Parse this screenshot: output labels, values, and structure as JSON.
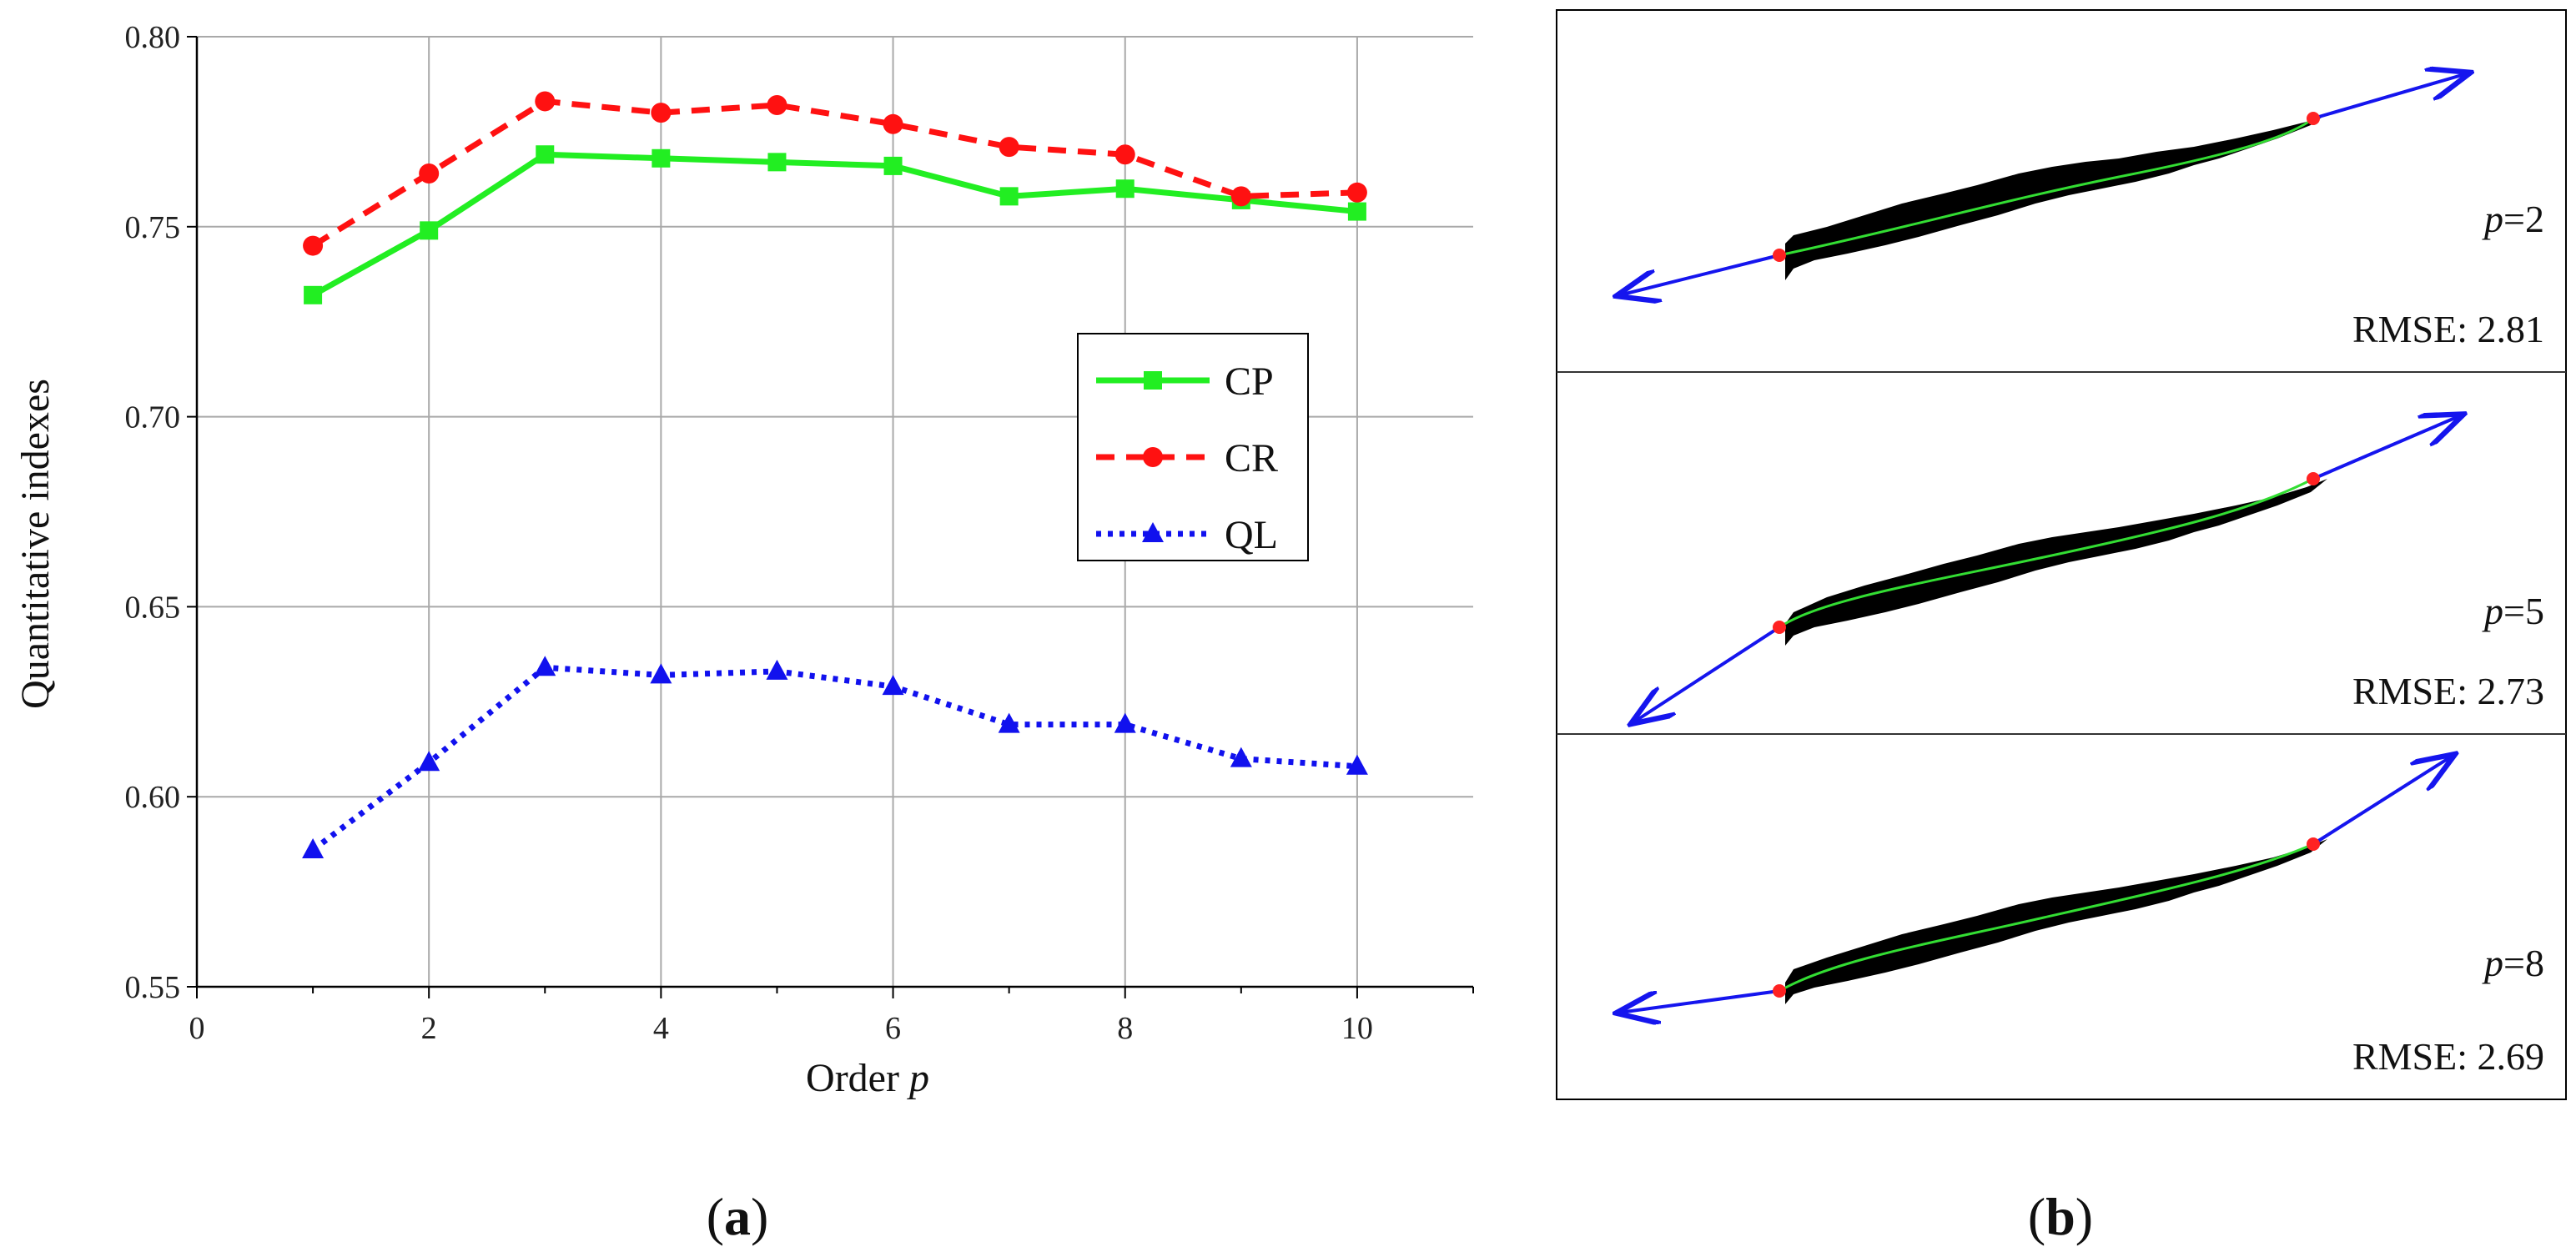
{
  "chart_data": [
    {
      "type": "line",
      "panel_caption": {
        "open": "(",
        "letter": "a",
        "close": ")"
      },
      "x": [
        1,
        2,
        3,
        4,
        5,
        6,
        7,
        8,
        9,
        10
      ],
      "series": [
        {
          "name": "CP",
          "color": "#22ee22",
          "style": "solid",
          "marker": "square",
          "values": [
            0.732,
            0.749,
            0.769,
            0.768,
            0.767,
            0.766,
            0.758,
            0.76,
            0.757,
            0.754
          ]
        },
        {
          "name": "CR",
          "color": "#ff1111",
          "style": "dashed",
          "marker": "circle",
          "values": [
            0.745,
            0.764,
            0.783,
            0.78,
            0.782,
            0.777,
            0.771,
            0.769,
            0.758,
            0.759
          ]
        },
        {
          "name": "QL",
          "color": "#1111ee",
          "style": "dotted",
          "marker": "triangle",
          "values": [
            0.586,
            0.609,
            0.634,
            0.632,
            0.633,
            0.629,
            0.619,
            0.619,
            0.61,
            0.608
          ]
        }
      ],
      "xlabel": "Order",
      "xlabel_var": "p",
      "ylabel": "Quantitative indexes",
      "xlim": [
        0,
        11
      ],
      "ylim": [
        0.55,
        0.8
      ],
      "xticks": [
        0,
        2,
        4,
        6,
        8,
        10
      ],
      "xtick_labels": [
        "0",
        "2",
        "4",
        "6",
        "8",
        "10"
      ],
      "yticks": [
        0.55,
        0.6,
        0.65,
        0.7,
        0.75,
        0.8
      ],
      "ytick_labels": [
        "0.55",
        "0.60",
        "0.65",
        "0.70",
        "0.75",
        "0.80"
      ],
      "grid": true,
      "legend_position": "center-right"
    },
    {
      "type": "image-panels",
      "panel_caption": {
        "open": "(",
        "letter": "b",
        "close": ")"
      },
      "panels": [
        {
          "order_var": "p",
          "order_eq": "=2",
          "rmse_label": "RMSE: 2.81"
        },
        {
          "order_var": "p",
          "order_eq": "=5",
          "rmse_label": "RMSE: 2.73"
        },
        {
          "order_var": "p",
          "order_eq": "=8",
          "rmse_label": "RMSE: 2.69"
        }
      ],
      "colors": {
        "shape": "#000000",
        "curve": "#33dd33",
        "arrow": "#1515ee",
        "endpoint": "#ff2222"
      }
    }
  ]
}
